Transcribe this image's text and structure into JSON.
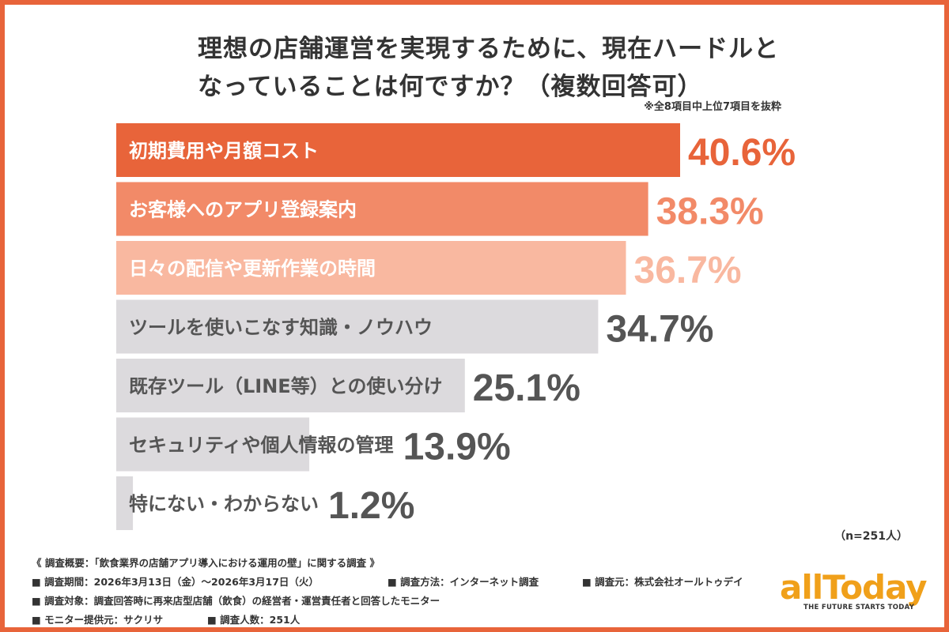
{
  "title_line1": "理想の店舗運営を実現するために、現在ハードルと",
  "title_line2": "なっていることは何ですか？（複数回答可）",
  "note": "※全8項目中上位7項目を抜粋",
  "n_label": "（n=251人）",
  "survey": {
    "heading": "《 調査概要：「飲食業界の店舗アプリ導入における運用の壁」に関する調査 》",
    "period": "■ 調査期間：2026年3月13日（金）〜2026年3月17日（火）",
    "method": "■ 調査方法：インターネット調査",
    "source": "■ 調査元：株式会社オールトゥデイ",
    "target": "■ 調査対象：調査回答時に再来店型店舗（飲食）の経営者・運営責任者と回答したモニター",
    "provider": "■ モニター提供元：サクリサ",
    "count": "■ 調査人数：251人"
  },
  "logo": {
    "text": "allToday",
    "tagline": "THE FUTURE STARTS TODAY"
  },
  "chart_data": {
    "type": "bar",
    "orientation": "horizontal",
    "categories": [
      "初期費用や月額コスト",
      "お客様へのアプリ登録案内",
      "日々の配信や更新作業の時間",
      "ツールを使いこなす知識・ノウハウ",
      "既存ツール（LINE等）との使い分け",
      "セキュリティや個人情報の管理",
      "特にない・わからない"
    ],
    "values": [
      40.6,
      38.3,
      36.7,
      34.7,
      25.1,
      13.9,
      1.2
    ],
    "value_labels": [
      "40.6%",
      "38.3%",
      "36.7%",
      "34.7%",
      "25.1%",
      "13.9%",
      "1.2%"
    ],
    "bar_colors": [
      "#e8643a",
      "#f28a68",
      "#f9b8a0",
      "#dcdadd",
      "#dcdadd",
      "#dcdadd",
      "#dcdadd"
    ],
    "label_colors": [
      "#ffffff",
      "#ffffff",
      "#ffffff",
      "#555555",
      "#555555",
      "#555555",
      "#555555"
    ],
    "value_colors": [
      "#e8643a",
      "#f28a68",
      "#f9b8a0",
      "#555555",
      "#555555",
      "#555555",
      "#555555"
    ],
    "xlim": [
      0,
      40.6
    ],
    "grid": false
  }
}
